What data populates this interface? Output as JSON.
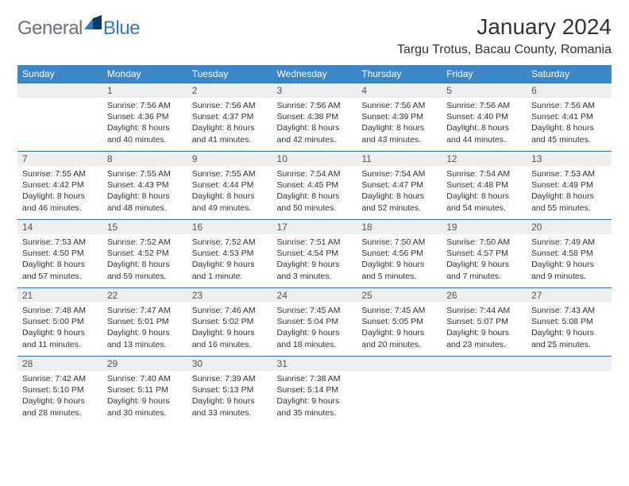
{
  "logo": {
    "text1": "General",
    "text2": "Blue"
  },
  "title": "January 2024",
  "location": "Targu Trotus, Bacau County, Romania",
  "colors": {
    "header_bg": "#3b87c8",
    "header_text": "#ffffff",
    "daynum_bg": "#eceeef",
    "row_border": "#2f6fa8",
    "logo_gray": "#6b7278",
    "logo_blue": "#2f7abf"
  },
  "weekdays": [
    "Sunday",
    "Monday",
    "Tuesday",
    "Wednesday",
    "Thursday",
    "Friday",
    "Saturday"
  ],
  "weeks": [
    [
      {
        "n": "",
        "lines": []
      },
      {
        "n": "1",
        "lines": [
          "Sunrise: 7:56 AM",
          "Sunset: 4:36 PM",
          "Daylight: 8 hours",
          "and 40 minutes."
        ]
      },
      {
        "n": "2",
        "lines": [
          "Sunrise: 7:56 AM",
          "Sunset: 4:37 PM",
          "Daylight: 8 hours",
          "and 41 minutes."
        ]
      },
      {
        "n": "3",
        "lines": [
          "Sunrise: 7:56 AM",
          "Sunset: 4:38 PM",
          "Daylight: 8 hours",
          "and 42 minutes."
        ]
      },
      {
        "n": "4",
        "lines": [
          "Sunrise: 7:56 AM",
          "Sunset: 4:39 PM",
          "Daylight: 8 hours",
          "and 43 minutes."
        ]
      },
      {
        "n": "5",
        "lines": [
          "Sunrise: 7:56 AM",
          "Sunset: 4:40 PM",
          "Daylight: 8 hours",
          "and 44 minutes."
        ]
      },
      {
        "n": "6",
        "lines": [
          "Sunrise: 7:56 AM",
          "Sunset: 4:41 PM",
          "Daylight: 8 hours",
          "and 45 minutes."
        ]
      }
    ],
    [
      {
        "n": "7",
        "lines": [
          "Sunrise: 7:55 AM",
          "Sunset: 4:42 PM",
          "Daylight: 8 hours",
          "and 46 minutes."
        ]
      },
      {
        "n": "8",
        "lines": [
          "Sunrise: 7:55 AM",
          "Sunset: 4:43 PM",
          "Daylight: 8 hours",
          "and 48 minutes."
        ]
      },
      {
        "n": "9",
        "lines": [
          "Sunrise: 7:55 AM",
          "Sunset: 4:44 PM",
          "Daylight: 8 hours",
          "and 49 minutes."
        ]
      },
      {
        "n": "10",
        "lines": [
          "Sunrise: 7:54 AM",
          "Sunset: 4:45 PM",
          "Daylight: 8 hours",
          "and 50 minutes."
        ]
      },
      {
        "n": "11",
        "lines": [
          "Sunrise: 7:54 AM",
          "Sunset: 4:47 PM",
          "Daylight: 8 hours",
          "and 52 minutes."
        ]
      },
      {
        "n": "12",
        "lines": [
          "Sunrise: 7:54 AM",
          "Sunset: 4:48 PM",
          "Daylight: 8 hours",
          "and 54 minutes."
        ]
      },
      {
        "n": "13",
        "lines": [
          "Sunrise: 7:53 AM",
          "Sunset: 4:49 PM",
          "Daylight: 8 hours",
          "and 55 minutes."
        ]
      }
    ],
    [
      {
        "n": "14",
        "lines": [
          "Sunrise: 7:53 AM",
          "Sunset: 4:50 PM",
          "Daylight: 8 hours",
          "and 57 minutes."
        ]
      },
      {
        "n": "15",
        "lines": [
          "Sunrise: 7:52 AM",
          "Sunset: 4:52 PM",
          "Daylight: 8 hours",
          "and 59 minutes."
        ]
      },
      {
        "n": "16",
        "lines": [
          "Sunrise: 7:52 AM",
          "Sunset: 4:53 PM",
          "Daylight: 9 hours",
          "and 1 minute."
        ]
      },
      {
        "n": "17",
        "lines": [
          "Sunrise: 7:51 AM",
          "Sunset: 4:54 PM",
          "Daylight: 9 hours",
          "and 3 minutes."
        ]
      },
      {
        "n": "18",
        "lines": [
          "Sunrise: 7:50 AM",
          "Sunset: 4:56 PM",
          "Daylight: 9 hours",
          "and 5 minutes."
        ]
      },
      {
        "n": "19",
        "lines": [
          "Sunrise: 7:50 AM",
          "Sunset: 4:57 PM",
          "Daylight: 9 hours",
          "and 7 minutes."
        ]
      },
      {
        "n": "20",
        "lines": [
          "Sunrise: 7:49 AM",
          "Sunset: 4:58 PM",
          "Daylight: 9 hours",
          "and 9 minutes."
        ]
      }
    ],
    [
      {
        "n": "21",
        "lines": [
          "Sunrise: 7:48 AM",
          "Sunset: 5:00 PM",
          "Daylight: 9 hours",
          "and 11 minutes."
        ]
      },
      {
        "n": "22",
        "lines": [
          "Sunrise: 7:47 AM",
          "Sunset: 5:01 PM",
          "Daylight: 9 hours",
          "and 13 minutes."
        ]
      },
      {
        "n": "23",
        "lines": [
          "Sunrise: 7:46 AM",
          "Sunset: 5:02 PM",
          "Daylight: 9 hours",
          "and 16 minutes."
        ]
      },
      {
        "n": "24",
        "lines": [
          "Sunrise: 7:45 AM",
          "Sunset: 5:04 PM",
          "Daylight: 9 hours",
          "and 18 minutes."
        ]
      },
      {
        "n": "25",
        "lines": [
          "Sunrise: 7:45 AM",
          "Sunset: 5:05 PM",
          "Daylight: 9 hours",
          "and 20 minutes."
        ]
      },
      {
        "n": "26",
        "lines": [
          "Sunrise: 7:44 AM",
          "Sunset: 5:07 PM",
          "Daylight: 9 hours",
          "and 23 minutes."
        ]
      },
      {
        "n": "27",
        "lines": [
          "Sunrise: 7:43 AM",
          "Sunset: 5:08 PM",
          "Daylight: 9 hours",
          "and 25 minutes."
        ]
      }
    ],
    [
      {
        "n": "28",
        "lines": [
          "Sunrise: 7:42 AM",
          "Sunset: 5:10 PM",
          "Daylight: 9 hours",
          "and 28 minutes."
        ]
      },
      {
        "n": "29",
        "lines": [
          "Sunrise: 7:40 AM",
          "Sunset: 5:11 PM",
          "Daylight: 9 hours",
          "and 30 minutes."
        ]
      },
      {
        "n": "30",
        "lines": [
          "Sunrise: 7:39 AM",
          "Sunset: 5:13 PM",
          "Daylight: 9 hours",
          "and 33 minutes."
        ]
      },
      {
        "n": "31",
        "lines": [
          "Sunrise: 7:38 AM",
          "Sunset: 5:14 PM",
          "Daylight: 9 hours",
          "and 35 minutes."
        ]
      },
      {
        "n": "",
        "lines": []
      },
      {
        "n": "",
        "lines": []
      },
      {
        "n": "",
        "lines": []
      }
    ]
  ]
}
